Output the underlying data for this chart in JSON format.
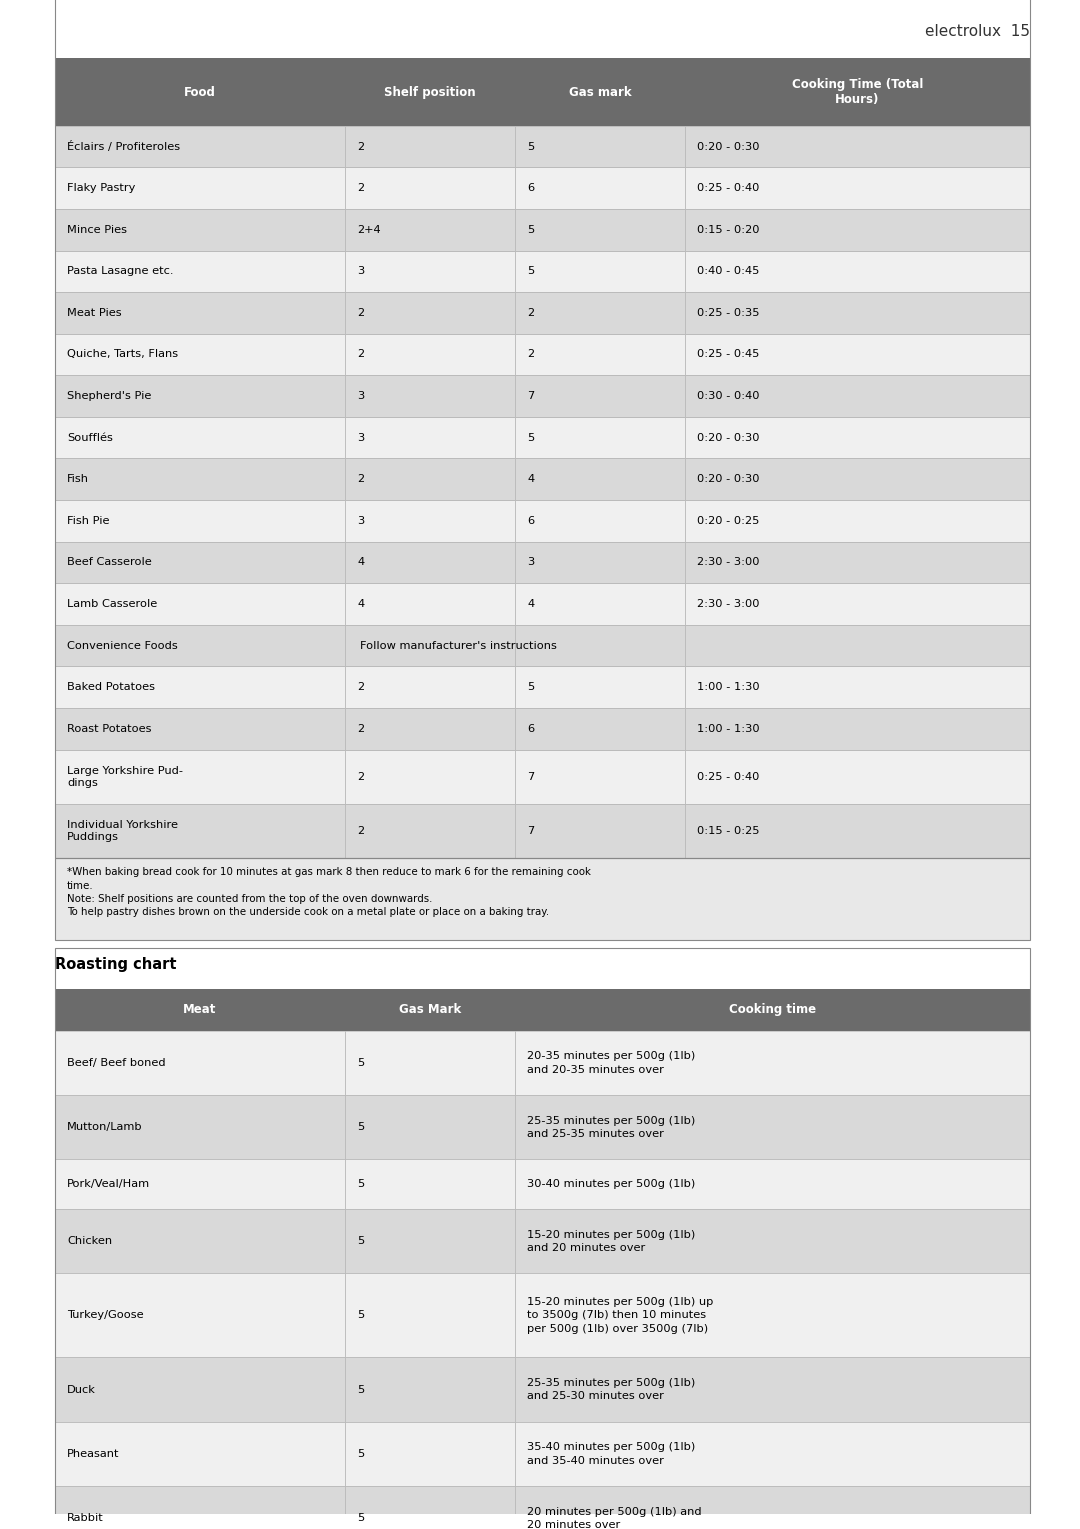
{
  "page_header": "electrolux  15",
  "table1_headers": [
    "Food",
    "Shelf position",
    "Gas mark",
    "Cooking Time (Total\nHours)"
  ],
  "table1_rows": [
    [
      "Éclairs / Profiteroles",
      "2",
      "5",
      "0:20 - 0:30"
    ],
    [
      "Flaky Pastry",
      "2",
      "6",
      "0:25 - 0:40"
    ],
    [
      "Mince Pies",
      "2+4",
      "5",
      "0:15 - 0:20"
    ],
    [
      "Pasta Lasagne etc.",
      "3",
      "5",
      "0:40 - 0:45"
    ],
    [
      "Meat Pies",
      "2",
      "2",
      "0:25 - 0:35"
    ],
    [
      "Quiche, Tarts, Flans",
      "2",
      "2",
      "0:25 - 0:45"
    ],
    [
      "Shepherd's Pie",
      "3",
      "7",
      "0:30 - 0:40"
    ],
    [
      "Soufflés",
      "3",
      "5",
      "0:20 - 0:30"
    ],
    [
      "Fish",
      "2",
      "4",
      "0:20 - 0:30"
    ],
    [
      "Fish Pie",
      "3",
      "6",
      "0:20 - 0:25"
    ],
    [
      "Beef Casserole",
      "4",
      "3",
      "2:30 - 3:00"
    ],
    [
      "Lamb Casserole",
      "4",
      "4",
      "2:30 - 3:00"
    ],
    [
      "Convenience Foods",
      "Follow manufacturer's instructions",
      "",
      ""
    ],
    [
      "Baked Potatoes",
      "2",
      "5",
      "1:00 - 1:30"
    ],
    [
      "Roast Potatoes",
      "2",
      "6",
      "1:00 - 1:30"
    ],
    [
      "Large Yorkshire Pud-\ndings",
      "2",
      "7",
      "0:25 - 0:40"
    ],
    [
      "Individual Yorkshire\nPuddings",
      "2",
      "7",
      "0:15 - 0:25"
    ]
  ],
  "table1_footnote": "*When baking bread cook for 10 minutes at gas mark 8 then reduce to mark 6 for the remaining cook\ntime.\nNote: Shelf positions are counted from the top of the oven downwards.\nTo help pastry dishes brown on the underside cook on a metal plate or place on a baking tray.",
  "roasting_title": "Roasting chart",
  "table2_headers": [
    "Meat",
    "Gas Mark",
    "Cooking time"
  ],
  "table2_rows": [
    [
      "Beef/ Beef boned",
      "5",
      "20-35 minutes per 500g (1lb)\nand 20-35 minutes over"
    ],
    [
      "Mutton/Lamb",
      "5",
      "25-35 minutes per 500g (1lb)\nand 25-35 minutes over"
    ],
    [
      "Pork/Veal/Ham",
      "5",
      "30-40 minutes per 500g (1lb)"
    ],
    [
      "Chicken",
      "5",
      "15-20 minutes per 500g (1lb)\nand 20 minutes over"
    ],
    [
      "Turkey/Goose",
      "5",
      "15-20 minutes per 500g (1lb) up\nto 3500g (7lb) then 10 minutes\nper 500g (1lb) over 3500g (7lb)"
    ],
    [
      "Duck",
      "5",
      "25-35 minutes per 500g (1lb)\nand 25-30 minutes over"
    ],
    [
      "Pheasant",
      "5",
      "35-40 minutes per 500g (1lb)\nand 35-40 minutes over"
    ],
    [
      "Rabbit",
      "5",
      "20 minutes per 500g (1lb) and\n20 minutes over"
    ]
  ],
  "header_bg": "#6b6b6b",
  "header_text": "#ffffff",
  "row_odd_bg": "#d9d9d9",
  "row_even_bg": "#f0f0f0",
  "convenience_bg": "#c0c0c0",
  "border_color": "#999999",
  "text_color": "#000000",
  "footnote_bg": "#e8e8e8"
}
